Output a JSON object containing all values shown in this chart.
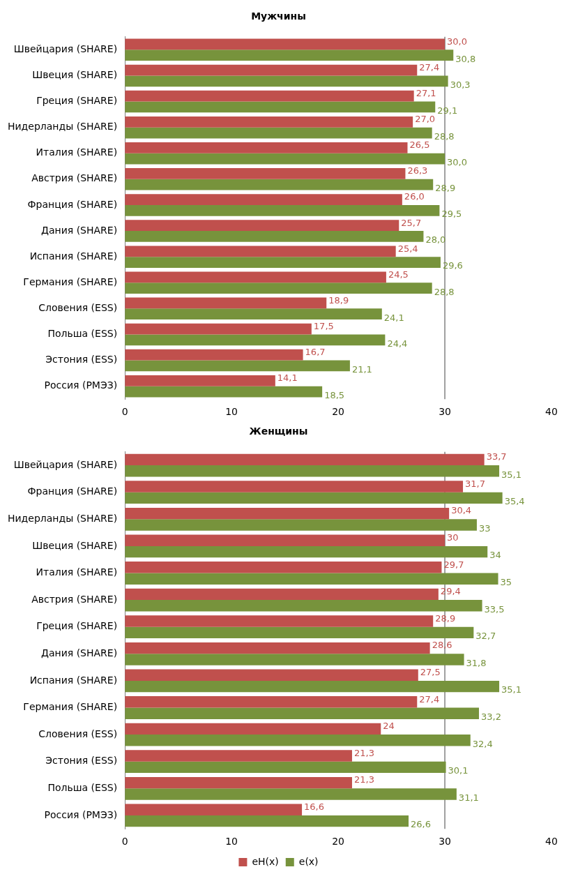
{
  "chart_data": [
    {
      "type": "bar",
      "title": "Мужчины",
      "orientation": "horizontal",
      "categories": [
        "Швейцария (SHARE)",
        "Швеция (SHARE)",
        "Греция (SHARE)",
        "Нидерланды (SHARE)",
        "Италия (SHARE)",
        "Австрия (SHARE)",
        "Франция (SHARE)",
        "Дания (SHARE)",
        "Испания (SHARE)",
        "Германия (SHARE)",
        "Словения (ESS)",
        "Польша (ESS)",
        "Эстония (ESS)",
        "Россия (РМЭЗ)"
      ],
      "series": [
        {
          "color": "#c0504d",
          "values": [
            30.0,
            27.4,
            27.1,
            27.0,
            26.5,
            26.3,
            26.0,
            25.7,
            25.4,
            24.5,
            18.9,
            17.5,
            16.7,
            14.1
          ],
          "value_labels": [
            "30,0",
            "27,4",
            "27,1",
            "27,0",
            "26,5",
            "26,3",
            "26,0",
            "25,7",
            "25,4",
            "24,5",
            "18,9",
            "17,5",
            "16,7",
            "14,1"
          ]
        },
        {
          "color": "#77933c",
          "values": [
            30.8,
            30.3,
            29.1,
            28.8,
            30.0,
            28.9,
            29.5,
            28.0,
            29.6,
            28.8,
            24.1,
            24.4,
            21.1,
            18.5
          ],
          "value_labels": [
            "30,8",
            "30,3",
            "29,1",
            "28,8",
            "30,0",
            "28,9",
            "29,5",
            "28,0",
            "29,6",
            "28,8",
            "24,1",
            "24,4",
            "21,1",
            "18,5"
          ]
        }
      ],
      "xlim": [
        0,
        40
      ],
      "xticks": [
        0,
        10,
        20,
        30,
        40
      ],
      "ref_lines": [
        {
          "axis": "x",
          "value": 30,
          "color": "#808080"
        }
      ],
      "legend": false
    },
    {
      "type": "bar",
      "title": "Женщины",
      "orientation": "horizontal",
      "categories": [
        "Швейцария (SHARE)",
        "Франция (SHARE)",
        "Нидерланды (SHARE)",
        "Швеция (SHARE)",
        "Италия (SHARE)",
        "Австрия (SHARE)",
        "Греция (SHARE)",
        "Дания (SHARE)",
        "Испания (SHARE)",
        "Германия (SHARE)",
        "Словения (ESS)",
        "Эстония (ESS)",
        "Польша (ESS)",
        "Россия (РМЭЗ)"
      ],
      "series": [
        {
          "name": "eH(x)",
          "color": "#c0504d",
          "values": [
            33.7,
            31.7,
            30.4,
            30,
            29.7,
            29.4,
            28.9,
            28.6,
            27.5,
            27.4,
            24,
            21.3,
            21.3,
            16.6
          ],
          "value_labels": [
            "33,7",
            "31,7",
            "30,4",
            "30",
            "29,7",
            "29,4",
            "28,9",
            "28,6",
            "27,5",
            "27,4",
            "24",
            "21,3",
            "21,3",
            "16,6"
          ]
        },
        {
          "name": "e(x)",
          "color": "#77933c",
          "values": [
            35.1,
            35.4,
            33,
            34,
            35,
            33.5,
            32.7,
            31.8,
            35.1,
            33.2,
            32.4,
            30.1,
            31.1,
            26.6
          ],
          "value_labels": [
            "35,1",
            "35,4",
            "33",
            "34",
            "35",
            "33,5",
            "32,7",
            "31,8",
            "35,1",
            "33,2",
            "32,4",
            "30,1",
            "31,1",
            "26,6"
          ]
        }
      ],
      "xlim": [
        0,
        40
      ],
      "xticks": [
        0,
        10,
        20,
        30,
        40
      ],
      "ref_lines": [
        {
          "axis": "x",
          "value": 30,
          "color": "#808080"
        }
      ],
      "legend": "bottom"
    }
  ]
}
